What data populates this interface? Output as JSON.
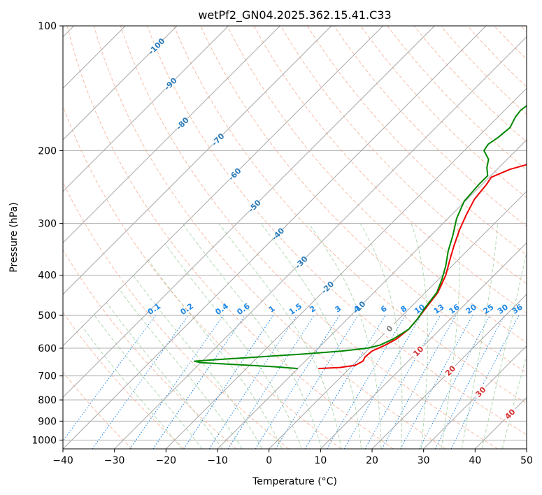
{
  "chart_data": {
    "type": "skew-t",
    "title": "wetPf2_GN04.2025.362.15.41.C33",
    "xlabel": "Temperature (°C)",
    "ylabel": "Pressure (hPa)",
    "xlim": [
      -40,
      50
    ],
    "ylim": [
      1050,
      100
    ],
    "x_ticks": [
      -40,
      -30,
      -20,
      -10,
      0,
      10,
      20,
      30,
      40,
      50
    ],
    "y_ticks": [
      100,
      200,
      300,
      400,
      500,
      600,
      700,
      800,
      900,
      1000
    ],
    "isotherm_labels": [
      {
        "value": -100,
        "p": 112,
        "label": "-100"
      },
      {
        "value": -90,
        "p": 138,
        "label": "-90"
      },
      {
        "value": -80,
        "p": 172,
        "label": "-80"
      },
      {
        "value": -70,
        "p": 188,
        "label": "-70"
      },
      {
        "value": -60,
        "p": 228,
        "label": "-60"
      },
      {
        "value": -50,
        "p": 272,
        "label": "-50"
      },
      {
        "value": -40,
        "p": 318,
        "label": "-40"
      },
      {
        "value": -30,
        "p": 372,
        "label": "-30"
      },
      {
        "value": -20,
        "p": 428,
        "label": "-20"
      },
      {
        "value": -10,
        "p": 478,
        "label": "-10"
      },
      {
        "value": 0,
        "p": 538,
        "label": "0"
      },
      {
        "value": 10,
        "p": 610,
        "label": "10"
      },
      {
        "value": 20,
        "p": 680,
        "label": "20"
      },
      {
        "value": 30,
        "p": 765,
        "label": "30"
      },
      {
        "value": 40,
        "p": 865,
        "label": "40"
      }
    ],
    "mixing_ratio_labels": [
      "0.1",
      "0.2",
      "0.4",
      "0.6",
      "1",
      "1.5",
      "2",
      "3",
      "4",
      "6",
      "8",
      "10",
      "13",
      "16",
      "20",
      "25",
      "30",
      "36"
    ],
    "series": [
      {
        "name": "Temperature",
        "color": "#ee0000",
        "points": [
          [
            672,
            -6
          ],
          [
            668,
            -2
          ],
          [
            660,
            0.5
          ],
          [
            645,
            1.2
          ],
          [
            630,
            0.8
          ],
          [
            610,
            1.0
          ],
          [
            590,
            2.4
          ],
          [
            570,
            3.4
          ],
          [
            540,
            3.9
          ],
          [
            510,
            3.6
          ],
          [
            480,
            3.1
          ],
          [
            440,
            2.4
          ],
          [
            400,
            0.6
          ],
          [
            370,
            -1.4
          ],
          [
            340,
            -3.5
          ],
          [
            310,
            -5.6
          ],
          [
            285,
            -7.2
          ],
          [
            262,
            -8.6
          ],
          [
            242,
            -9.1
          ],
          [
            232,
            -9.6
          ],
          [
            222,
            -7.5
          ],
          [
            212,
            -3.4
          ],
          [
            205,
            0.3
          ],
          [
            197,
            4.7
          ],
          [
            188,
            8.3
          ],
          [
            180,
            11.5
          ],
          [
            170,
            14.5
          ],
          [
            162,
            17.2
          ],
          [
            157,
            18.5
          ],
          [
            150,
            20.2
          ],
          [
            145,
            22.2
          ],
          [
            140,
            25.2
          ],
          [
            133,
            26.5
          ],
          [
            126,
            26.3
          ],
          [
            118,
            27.5
          ],
          [
            110,
            30.0
          ],
          [
            100,
            33.5
          ]
        ]
      },
      {
        "name": "Dewpoint",
        "color": "#008800",
        "points": [
          [
            672,
            -10.0
          ],
          [
            665,
            -15
          ],
          [
            660,
            -20
          ],
          [
            655,
            -25
          ],
          [
            650,
            -30
          ],
          [
            645,
            -31.5
          ],
          [
            640,
            -28
          ],
          [
            630,
            -20
          ],
          [
            620,
            -12
          ],
          [
            610,
            -5
          ],
          [
            600,
            -0.5
          ],
          [
            590,
            1.4
          ],
          [
            570,
            2.8
          ],
          [
            540,
            3.9
          ],
          [
            510,
            3.6
          ],
          [
            480,
            2.9
          ],
          [
            440,
            2.2
          ],
          [
            410,
            0.7
          ],
          [
            380,
            -1.2
          ],
          [
            350,
            -3.6
          ],
          [
            320,
            -5.8
          ],
          [
            292,
            -8.3
          ],
          [
            265,
            -10.2
          ],
          [
            242,
            -10.6
          ],
          [
            230,
            -10.6
          ],
          [
            220,
            -12.3
          ],
          [
            210,
            -13.6
          ],
          [
            200,
            -16.2
          ],
          [
            193,
            -16.6
          ],
          [
            186,
            -16.0
          ],
          [
            176,
            -15.6
          ],
          [
            166,
            -16.6
          ],
          [
            160,
            -16.9
          ],
          [
            150,
            -16.2
          ],
          [
            140,
            -14.2
          ],
          [
            130,
            -12.0
          ],
          [
            120,
            -9.2
          ],
          [
            110,
            -6.0
          ],
          [
            100,
            -1.0
          ]
        ]
      }
    ]
  }
}
